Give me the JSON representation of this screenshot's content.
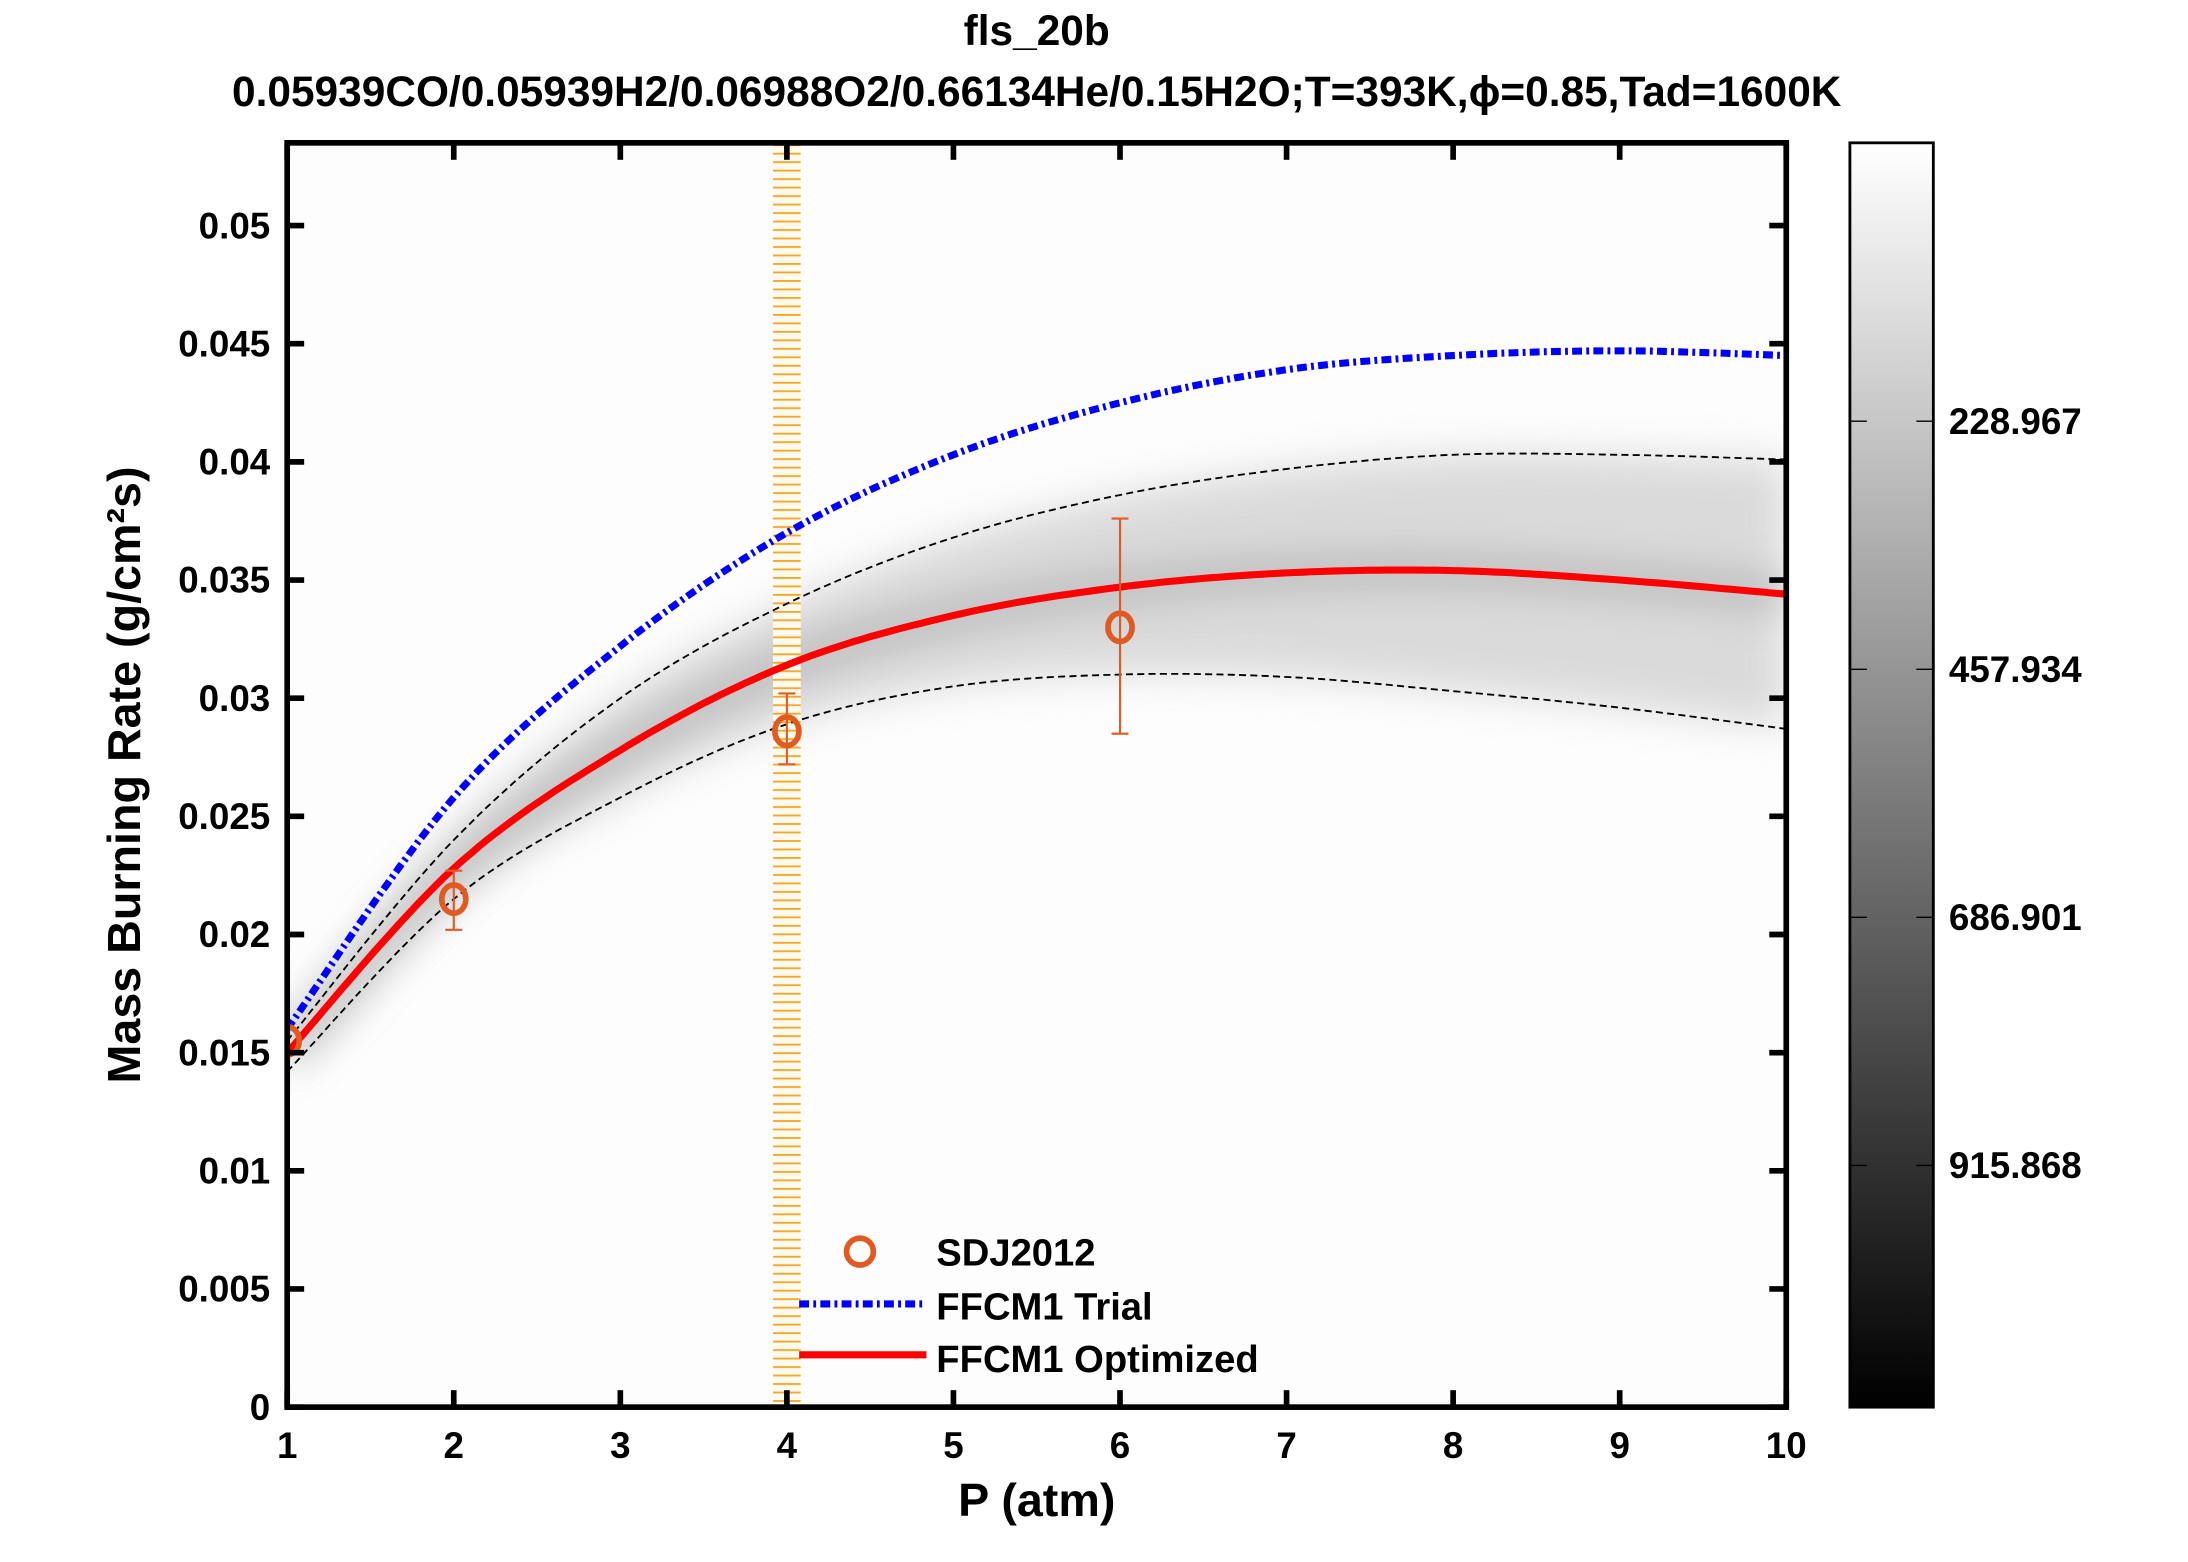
{
  "chart_data": {
    "type": "line",
    "title": "fls_20b",
    "subtitle": "0.05939CO/0.05939H2/0.06988O2/0.66134He/0.15H2O;T=393K,ϕ=0.85,Tad=1600K",
    "xlabel": "P (atm)",
    "ylabel": "Mass Burning Rate (g/cm²s)",
    "xlim": [
      1,
      10
    ],
    "ylim": [
      0,
      0.0535
    ],
    "xticks": [
      "1",
      "2",
      "3",
      "4",
      "5",
      "6",
      "7",
      "8",
      "9",
      "10"
    ],
    "yticks": [
      "0",
      "0.005",
      "0.01",
      "0.015",
      "0.02",
      "0.025",
      "0.03",
      "0.035",
      "0.04",
      "0.045",
      "0.05"
    ],
    "grid": false,
    "legend_position": "bottom-center",
    "highlight_band": {
      "x_center": 4,
      "x_from": 3.9,
      "x_to": 4.1,
      "color": "#f5a623"
    },
    "series": [
      {
        "name": "SDJ2012",
        "kind": "scatter",
        "color": "#e05a22",
        "x": [
          1,
          2,
          4,
          6
        ],
        "y": [
          0.0155,
          0.0215,
          0.0286,
          0.033
        ],
        "err_low": [
          0.0155,
          0.0202,
          0.0272,
          0.0285
        ],
        "err_high": [
          0.0155,
          0.0227,
          0.0302,
          0.0376
        ]
      },
      {
        "name": "FFCM1 Trial",
        "kind": "dash-dot",
        "color": "#0000ff",
        "x": [
          1,
          2,
          3,
          4,
          5,
          6,
          7,
          8,
          9,
          10
        ],
        "y": [
          0.016,
          0.0258,
          0.0322,
          0.037,
          0.0403,
          0.0425,
          0.0439,
          0.0445,
          0.0447,
          0.0445
        ]
      },
      {
        "name": "FFCM1 Optimized",
        "kind": "solid",
        "color": "#ff0000",
        "x": [
          1,
          2,
          3,
          4,
          5,
          6,
          7,
          8,
          9,
          10
        ],
        "y": [
          0.015,
          0.0228,
          0.0278,
          0.0314,
          0.0335,
          0.0347,
          0.0353,
          0.0354,
          0.035,
          0.0344
        ]
      },
      {
        "kind": "dashed-upper",
        "color": "#000000",
        "x": [
          1,
          2,
          3,
          4,
          5,
          6,
          7,
          8,
          9,
          10
        ],
        "y": [
          0.0155,
          0.024,
          0.03,
          0.034,
          0.0368,
          0.0386,
          0.0397,
          0.0403,
          0.0403,
          0.0401
        ]
      },
      {
        "kind": "dashed-lower",
        "color": "#000000",
        "x": [
          1,
          2,
          3,
          4,
          5,
          6,
          7,
          8,
          9,
          10
        ],
        "y": [
          0.0142,
          0.0215,
          0.0258,
          0.0289,
          0.0305,
          0.031,
          0.0309,
          0.0303,
          0.0296,
          0.0287
        ]
      }
    ],
    "colorbar": {
      "colormap": "gray",
      "direction": "light-top",
      "range": [
        -28,
        1139
      ],
      "ticks": [
        "228.967",
        "457.934",
        "686.901",
        "915.868"
      ],
      "tick_values": [
        228.967,
        457.934,
        686.901,
        915.868
      ]
    }
  }
}
